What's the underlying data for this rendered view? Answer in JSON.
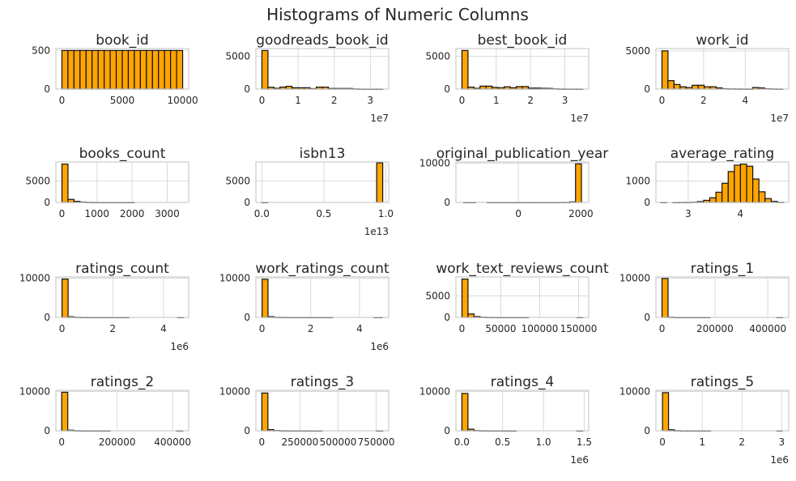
{
  "figure": {
    "title": "Histograms of Numeric Columns"
  },
  "style": {
    "bar_fill": "#FFA500",
    "bar_edge": "#111111",
    "grid": "#D9D9D9",
    "frame": "#CCCCCC",
    "text": "#262626"
  },
  "chart_data": [
    {
      "type": "bar",
      "title": "book_id",
      "xlim": [
        -500,
        10500
      ],
      "ylim": [
        0,
        525
      ],
      "xticks": [
        0,
        5000,
        10000
      ],
      "xtick_labels": [
        "0",
        "5000",
        "10000"
      ],
      "yticks": [
        0,
        500
      ],
      "ytick_labels": [
        "0",
        "500"
      ],
      "offset_label": "",
      "bin_edges": [
        1,
        500.95,
        1000.9,
        1500.85,
        2000.8,
        2500.75,
        3000.7,
        3500.65,
        4000.6,
        4500.55,
        5000.5,
        5500.45,
        6000.4,
        6500.35,
        7000.3,
        7500.25,
        8000.2,
        8500.15,
        9000.1,
        9500.05,
        10000
      ],
      "values": [
        500,
        500,
        500,
        500,
        500,
        500,
        500,
        500,
        500,
        500,
        500,
        500,
        500,
        500,
        500,
        500,
        500,
        500,
        500,
        500
      ]
    },
    {
      "type": "bar",
      "title": "goodreads_book_id",
      "xlim": [
        -1670000,
        35070000
      ],
      "ylim": [
        0,
        6200
      ],
      "xticks": [
        0,
        10000000,
        20000000,
        30000000
      ],
      "xtick_labels": [
        "0",
        "1",
        "2",
        "3"
      ],
      "yticks": [
        0,
        5000
      ],
      "ytick_labels": [
        "0",
        "5000"
      ],
      "offset_label": "1e7",
      "bin_edges": [
        0,
        1670000,
        3340000,
        5010000,
        6680000,
        8350000,
        10020000,
        11690000,
        13360000,
        15030000,
        16700000,
        18370000,
        20040000,
        21710000,
        23380000,
        25050000,
        26720000,
        28390000,
        30060000,
        31730000,
        33400000
      ],
      "values": [
        5900,
        280,
        120,
        300,
        420,
        200,
        200,
        200,
        60,
        300,
        300,
        90,
        90,
        90,
        90,
        30,
        10,
        5,
        3,
        5
      ]
    },
    {
      "type": "bar",
      "title": "best_book_id",
      "xlim": [
        -1760000,
        36960000
      ],
      "ylim": [
        0,
        6200
      ],
      "xticks": [
        0,
        10000000,
        20000000,
        30000000
      ],
      "xtick_labels": [
        "0",
        "1",
        "2",
        "3"
      ],
      "yticks": [
        0,
        5000
      ],
      "ytick_labels": [
        "0",
        "5000"
      ],
      "offset_label": "1e7",
      "bin_edges": [
        0,
        1760000,
        3520000,
        5280000,
        7040000,
        8800000,
        10560000,
        12320000,
        14080000,
        15840000,
        17600000,
        19360000,
        21120000,
        22880000,
        24640000,
        26400000,
        28160000,
        29920000,
        31680000,
        33440000,
        35200000
      ],
      "values": [
        5900,
        300,
        120,
        450,
        450,
        250,
        200,
        350,
        200,
        380,
        380,
        150,
        150,
        120,
        100,
        40,
        20,
        10,
        10,
        5
      ]
    },
    {
      "type": "bar",
      "title": "work_id",
      "xlim": [
        -2900000,
        60900000
      ],
      "ylim": [
        0,
        5300
      ],
      "xticks": [
        0,
        20000000,
        40000000
      ],
      "xtick_labels": [
        "0",
        "2",
        "4"
      ],
      "yticks": [
        0,
        5000
      ],
      "ytick_labels": [
        "0",
        "5000"
      ],
      "offset_label": "1e7",
      "bin_edges": [
        0,
        2900000,
        5800000,
        8700000,
        11600000,
        14500000,
        17400000,
        20300000,
        23200000,
        26100000,
        29000000,
        31900000,
        34800000,
        37700000,
        40600000,
        43500000,
        46400000,
        49300000,
        52200000,
        55100000,
        58000000
      ],
      "values": [
        5000,
        1100,
        600,
        300,
        200,
        500,
        500,
        300,
        300,
        150,
        50,
        30,
        20,
        20,
        10,
        200,
        150,
        50,
        20,
        10
      ]
    },
    {
      "type": "bar",
      "title": "books_count",
      "xlim": [
        -172,
        3612
      ],
      "ylim": [
        0,
        9400
      ],
      "xticks": [
        0,
        1000,
        2000,
        3000
      ],
      "xtick_labels": [
        "0",
        "1000",
        "2000",
        "3000"
      ],
      "yticks": [
        0,
        5000
      ],
      "ytick_labels": [
        "0",
        "5000"
      ],
      "offset_label": "",
      "bin_edges": [
        1,
        173,
        345,
        517,
        689,
        861,
        1033,
        1205,
        1377,
        1549,
        1721,
        1893,
        2065,
        2237,
        2409,
        2581,
        2753,
        2925,
        3097,
        3269,
        3441
      ],
      "values": [
        8900,
        700,
        250,
        100,
        30,
        10,
        5,
        3,
        2,
        1,
        1,
        1,
        0,
        0,
        0,
        0,
        0,
        0,
        0,
        0
      ]
    },
    {
      "type": "bar",
      "title": "isbn13",
      "xlim": [
        -480000000000,
        10230000000000
      ],
      "ylim": [
        0,
        9400
      ],
      "xticks": [
        0,
        5000000000000,
        10000000000000
      ],
      "xtick_labels": [
        "0.0",
        "0.5",
        "1.0"
      ],
      "yticks": [
        0,
        5000
      ],
      "ytick_labels": [
        "0",
        "5000"
      ],
      "offset_label": "1e13",
      "bin_edges": [
        195170000,
        487550000000,
        974910000000,
        1462270000000,
        1949630000000,
        2437000000000,
        2924360000000,
        3411720000000,
        3899080000000,
        4386440000000,
        4873800000000,
        5361170000000,
        5848530000000,
        6335890000000,
        6823250000000,
        7310610000000,
        7797980000000,
        8285340000000,
        8772700000000,
        9260060000000,
        9747420000000
      ],
      "values": [
        1,
        0,
        0,
        0,
        0,
        0,
        0,
        0,
        0,
        0,
        0,
        0,
        0,
        0,
        0,
        0,
        0,
        0,
        0,
        9200
      ]
    },
    {
      "type": "bar",
      "title": "original_publication_year",
      "xlim": [
        -2000,
        2250
      ],
      "ylim": [
        0,
        10300
      ],
      "xticks": [
        0,
        2000
      ],
      "xtick_labels": [
        "0",
        "2000"
      ],
      "yticks": [
        0,
        10000
      ],
      "ytick_labels": [
        "0",
        "10000"
      ],
      "offset_label": "",
      "bin_edges": [
        -1750,
        -1561.65,
        -1373.3,
        -1184.95,
        -996.6,
        -808.25,
        -619.9,
        -431.55,
        -243.2,
        -54.85,
        133.5,
        321.85,
        510.2,
        698.55,
        886.9,
        1075.25,
        1263.6,
        1451.95,
        1640.3,
        1828.65,
        2017
      ],
      "values": [
        1,
        1,
        0,
        0,
        1,
        1,
        2,
        3,
        2,
        2,
        2,
        2,
        2,
        2,
        3,
        3,
        10,
        20,
        140,
        9800
      ]
    },
    {
      "type": "bar",
      "title": "average_rating",
      "xlim": [
        2.38,
        4.93
      ],
      "ylim": [
        0,
        1900
      ],
      "xticks": [
        3,
        4
      ],
      "xtick_labels": [
        "3",
        "4"
      ],
      "yticks": [
        0,
        1000
      ],
      "ytick_labels": [
        "0",
        "1000"
      ],
      "offset_label": "",
      "bin_edges": [
        2.47,
        2.588,
        2.706,
        2.824,
        2.942,
        3.06,
        3.178,
        3.296,
        3.414,
        3.532,
        3.65,
        3.768,
        3.886,
        4.004,
        4.122,
        4.24,
        4.358,
        4.476,
        4.594,
        4.712,
        4.83
      ],
      "values": [
        1,
        0,
        1,
        3,
        5,
        15,
        40,
        100,
        220,
        480,
        900,
        1450,
        1750,
        1800,
        1700,
        1100,
        500,
        180,
        50,
        10
      ]
    },
    {
      "type": "bar",
      "title": "ratings_count",
      "xlim": [
        -240000,
        4990000
      ],
      "ylim": [
        0,
        10300
      ],
      "xticks": [
        0,
        2000000,
        4000000
      ],
      "xtick_labels": [
        "0",
        "2",
        "4"
      ],
      "yticks": [
        0,
        10000
      ],
      "ytick_labels": [
        "0",
        "10000"
      ],
      "offset_label": "1e6",
      "bin_edges": [
        2716,
        241680,
        480640,
        719600,
        958560,
        1197520,
        1436480,
        1675440,
        1914400,
        2153360,
        2392320,
        2631280,
        2870240,
        3109200,
        3348160,
        3587120,
        3826080,
        4065040,
        4304000,
        4542960,
        4780650
      ],
      "values": [
        9750,
        170,
        45,
        15,
        8,
        5,
        3,
        2,
        1,
        1,
        1,
        0,
        0,
        0,
        0,
        0,
        0,
        0,
        0,
        1
      ]
    },
    {
      "type": "bar",
      "title": "work_ratings_count",
      "xlim": [
        -250000,
        5200000
      ],
      "ylim": [
        0,
        10300
      ],
      "xticks": [
        0,
        2000000,
        4000000
      ],
      "xtick_labels": [
        "0",
        "2",
        "4"
      ],
      "yticks": [
        0,
        10000
      ],
      "ytick_labels": [
        "0",
        "10000"
      ],
      "offset_label": "1e6",
      "bin_edges": [
        5510,
        247300,
        489100,
        730900,
        972700,
        1214500,
        1456300,
        1698100,
        1939900,
        2181700,
        2423500,
        2665300,
        2907100,
        3148900,
        3390700,
        3632500,
        3874300,
        4116100,
        4357900,
        4599700,
        4942365
      ],
      "values": [
        9700,
        200,
        50,
        20,
        10,
        5,
        3,
        2,
        2,
        1,
        1,
        1,
        0,
        0,
        0,
        0,
        0,
        0,
        0,
        1
      ]
    },
    {
      "type": "bar",
      "title": "work_text_reviews_count",
      "xlim": [
        -7800,
        163000
      ],
      "ylim": [
        0,
        9400
      ],
      "xticks": [
        0,
        50000,
        100000,
        150000
      ],
      "xtick_labels": [
        "0",
        "50000",
        "100000",
        "150000"
      ],
      "yticks": [
        0,
        5000
      ],
      "ytick_labels": [
        "0",
        "5000"
      ],
      "offset_label": "",
      "bin_edges": [
        3,
        7780,
        15557,
        23334,
        31111,
        38888,
        46665,
        54442,
        62219,
        69996,
        77773,
        85550,
        93327,
        101104,
        108881,
        116658,
        124435,
        132212,
        139989,
        147766,
        155254
      ],
      "values": [
        8900,
        800,
        200,
        60,
        20,
        10,
        5,
        3,
        2,
        1,
        1,
        0,
        0,
        0,
        0,
        0,
        0,
        0,
        0,
        1
      ]
    },
    {
      "type": "bar",
      "title": "ratings_1",
      "xlim": [
        -23000,
        479000
      ],
      "ylim": [
        0,
        10300
      ],
      "xticks": [
        0,
        200000,
        400000
      ],
      "xtick_labels": [
        "0",
        "200000",
        "400000"
      ],
      "yticks": [
        0,
        10000
      ],
      "ytick_labels": [
        "0",
        "10000"
      ],
      "offset_label": "",
      "bin_edges": [
        11,
        22811,
        45611,
        68411,
        91211,
        114011,
        136811,
        159611,
        182411,
        205211,
        228011,
        250811,
        273611,
        296411,
        319211,
        342011,
        364811,
        387611,
        410411,
        433211,
        456191
      ],
      "values": [
        9900,
        70,
        15,
        5,
        3,
        2,
        1,
        1,
        0,
        0,
        0,
        0,
        0,
        0,
        0,
        0,
        0,
        0,
        0,
        1
      ]
    },
    {
      "type": "bar",
      "title": "ratings_2",
      "xlim": [
        -21000,
        458000
      ],
      "ylim": [
        0,
        10300
      ],
      "xticks": [
        0,
        200000,
        400000
      ],
      "xtick_labels": [
        "0",
        "200000",
        "400000"
      ],
      "yticks": [
        0,
        10000
      ],
      "ytick_labels": [
        "0",
        "10000"
      ],
      "offset_label": "",
      "bin_edges": [
        30,
        21830,
        43630,
        65430,
        87230,
        109030,
        130830,
        152630,
        174430,
        196230,
        218030,
        239830,
        261630,
        283430,
        305230,
        327030,
        348830,
        370630,
        392430,
        414230,
        436802
      ],
      "values": [
        9800,
        150,
        30,
        10,
        5,
        3,
        1,
        1,
        0,
        0,
        0,
        0,
        0,
        0,
        0,
        0,
        0,
        0,
        0,
        1
      ]
    },
    {
      "type": "bar",
      "title": "ratings_3",
      "xlim": [
        -39000,
        832000
      ],
      "ylim": [
        0,
        10300
      ],
      "xticks": [
        0,
        250000,
        500000,
        750000
      ],
      "xtick_labels": [
        "0",
        "250000",
        "500000",
        "750000"
      ],
      "yticks": [
        0,
        10000
      ],
      "ytick_labels": [
        "0",
        "10000"
      ],
      "offset_label": "",
      "bin_edges": [
        323,
        39820,
        79317,
        118814,
        158311,
        197808,
        237305,
        276802,
        316299,
        355796,
        395293,
        434790,
        474287,
        513784,
        553281,
        592778,
        632275,
        671772,
        711269,
        750766,
        793319
      ],
      "values": [
        9600,
        300,
        70,
        20,
        10,
        5,
        3,
        2,
        1,
        1,
        0,
        0,
        0,
        0,
        0,
        0,
        0,
        0,
        0,
        1
      ]
    },
    {
      "type": "bar",
      "title": "ratings_4",
      "xlim": [
        -73000,
        1555000
      ],
      "ylim": [
        0,
        10300
      ],
      "xticks": [
        0,
        500000,
        1000000,
        1500000
      ],
      "xtick_labels": [
        "0.0",
        "0.5",
        "1.0",
        "1.5"
      ],
      "yticks": [
        0,
        10000
      ],
      "ytick_labels": [
        "0",
        "10000"
      ],
      "offset_label": "1e6",
      "bin_edges": [
        750,
        74760,
        148770,
        222780,
        296790,
        370800,
        444810,
        518820,
        592830,
        666840,
        740850,
        814860,
        888870,
        962880,
        1036890,
        1110900,
        1184910,
        1258920,
        1332930,
        1406940,
        1481305
      ],
      "values": [
        9500,
        400,
        60,
        20,
        10,
        5,
        3,
        2,
        1,
        0,
        0,
        0,
        0,
        0,
        0,
        0,
        0,
        0,
        0,
        1
      ]
    },
    {
      "type": "bar",
      "title": "ratings_5",
      "xlim": [
        -165000,
        3177000
      ],
      "ylim": [
        0,
        10300
      ],
      "xticks": [
        0,
        1000000,
        2000000,
        3000000
      ],
      "xtick_labels": [
        "0",
        "1",
        "2",
        "3"
      ],
      "yticks": [
        0,
        10000
      ],
      "ytick_labels": [
        "0",
        "10000"
      ],
      "offset_label": "1e6",
      "bin_edges": [
        754,
        152270,
        303790,
        455310,
        606830,
        758350,
        909870,
        1061390,
        1212910,
        1364430,
        1515950,
        1667470,
        1818990,
        1970510,
        2122030,
        2273550,
        2425070,
        2576590,
        2728110,
        2879630,
        3011543
      ],
      "values": [
        9700,
        250,
        40,
        10,
        5,
        3,
        1,
        1,
        0,
        0,
        0,
        0,
        0,
        0,
        0,
        0,
        0,
        0,
        0,
        1
      ]
    }
  ]
}
